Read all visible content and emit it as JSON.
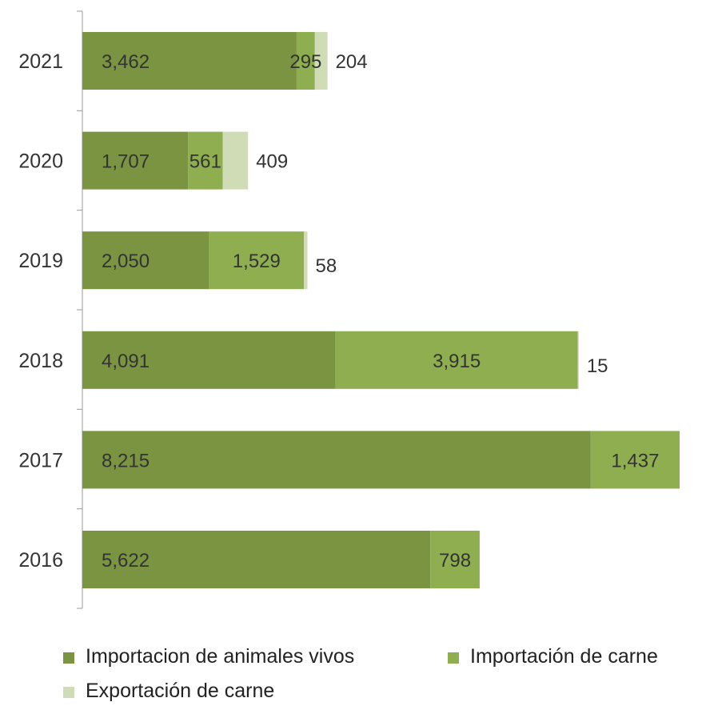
{
  "chart_data": {
    "type": "bar",
    "orientation": "horizontal",
    "stacked": true,
    "categories": [
      "2021",
      "2020",
      "2019",
      "2018",
      "2017",
      "2016"
    ],
    "series": [
      {
        "name": "Importacion de animales vivos",
        "color": "#7a9441",
        "values": [
          3462,
          1707,
          2050,
          4091,
          8215,
          5622
        ]
      },
      {
        "name": "Importación de carne",
        "color": "#8fae4f",
        "values": [
          295,
          561,
          1529,
          3915,
          1437,
          798
        ]
      },
      {
        "name": "Exportación de carne",
        "color": "#cfdcb5",
        "values": [
          204,
          409,
          58,
          15,
          0,
          0
        ]
      }
    ],
    "data_labels": [
      [
        "3,462",
        "1,707",
        "2,050",
        "4,091",
        "8,215",
        "5,622"
      ],
      [
        "295",
        "561",
        "1,529",
        "3,915",
        "1,437",
        "798"
      ],
      [
        "204",
        "409",
        "58",
        "15",
        "",
        ""
      ]
    ],
    "xlim": [
      0,
      9650
    ],
    "grid": false,
    "legend_position": "bottom"
  }
}
